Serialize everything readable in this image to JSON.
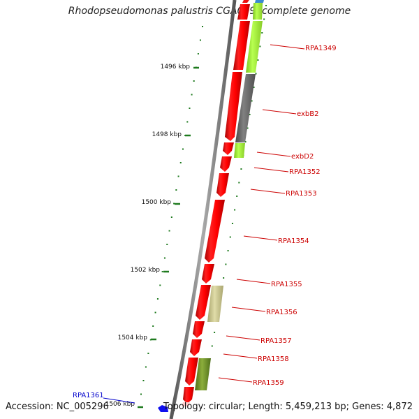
{
  "title": "Rhodopseudomonas palustris CGA009, complete genome",
  "footer": {
    "accession": "Accession: NC_005296",
    "topology": "Topology: circular; Length: 5,459,213 bp; Genes: 4,872"
  },
  "ticks": [
    "1496 kbp",
    "1498 kbp",
    "1500 kbp",
    "1502 kbp",
    "1504 kbp",
    "1506 kbp"
  ],
  "genes": {
    "RPA1349": "RPA1349",
    "exbB2": "exbB2",
    "exbD2": "exbD2",
    "RPA1352": "RPA1352",
    "RPA1353": "RPA1353",
    "RPA1354": "RPA1354",
    "RPA1355": "RPA1355",
    "RPA1356": "RPA1356",
    "RPA1357": "RPA1357",
    "RPA1358": "RPA1358",
    "RPA1359": "RPA1359",
    "RPA1361": "RPA1361"
  },
  "colors": {
    "red": "#ee1111",
    "lime": "#a6f03c",
    "gray": "#6e6e6e",
    "khaki": "#c8c48c",
    "olive": "#6e8c28",
    "blue": "#1010ee",
    "label_red": "#cc0000",
    "label_blue": "#0000cc",
    "tick_green": "#1e7a1e"
  }
}
